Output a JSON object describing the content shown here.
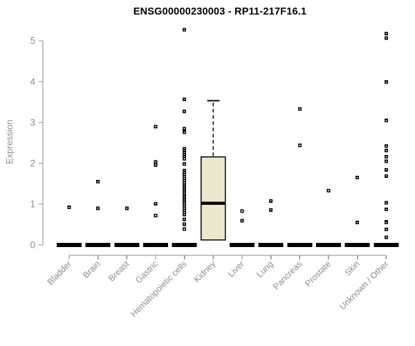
{
  "colors": {
    "box_fill": "#ece8ce",
    "box_stroke": "#000000",
    "point": "#000000",
    "point_center": "#ffffff",
    "axis": "#898989",
    "tick_label": "#8c8c8c",
    "title": "#000000",
    "zero_bar": "#000000"
  },
  "chart_data": {
    "type": "boxplot",
    "title": "ENSG00000230003 - RP11-217F16.1",
    "ylabel": "Expression",
    "xlabel": "",
    "ylim": [
      0,
      5
    ],
    "yticks": [
      0,
      1,
      2,
      3,
      4,
      5
    ],
    "grid": "off",
    "categories": [
      "Bladder",
      "Brain",
      "Breast",
      "Gastric",
      "Hematopoietic cells",
      "Kidney",
      "Liver",
      "Lung",
      "Pancreas",
      "Prostate",
      "Skin",
      "Unknown / Other"
    ],
    "boxes": [
      {
        "category": "Bladder",
        "q1": 0,
        "median": 0,
        "q3": 0,
        "whisker_low": 0,
        "whisker_high": 0,
        "outliers": [
          0.92
        ]
      },
      {
        "category": "Brain",
        "q1": 0,
        "median": 0,
        "q3": 0,
        "whisker_low": 0,
        "whisker_high": 0,
        "outliers": [
          1.55,
          0.9
        ]
      },
      {
        "category": "Breast",
        "q1": 0,
        "median": 0,
        "q3": 0,
        "whisker_low": 0,
        "whisker_high": 0,
        "outliers": [
          0.9
        ]
      },
      {
        "category": "Gastric",
        "q1": 0,
        "median": 0,
        "q3": 0,
        "whisker_low": 0,
        "whisker_high": 0,
        "outliers": [
          2.9,
          2.03,
          1.96,
          1.01,
          0.72
        ]
      },
      {
        "category": "Hematopoietic cells",
        "q1": 0,
        "median": 0,
        "q3": 0,
        "whisker_low": 0,
        "whisker_high": 0,
        "outliers": [
          5.27,
          3.57,
          3.27,
          2.85,
          2.76,
          2.36,
          2.31,
          2.26,
          2.21,
          2.16,
          2.11,
          1.98,
          1.82,
          1.77,
          1.72,
          1.67,
          1.62,
          1.57,
          1.52,
          1.47,
          1.42,
          1.37,
          1.32,
          1.27,
          1.2,
          1.15,
          1.1,
          1.05,
          1.0,
          0.95,
          0.9,
          0.85,
          0.8,
          0.75,
          0.63,
          0.51,
          0.39
        ]
      },
      {
        "category": "Kidney",
        "q1": 0.12,
        "median": 1.02,
        "q3": 2.16,
        "whisker_low": 0.12,
        "whisker_high": 3.53,
        "outliers": []
      },
      {
        "category": "Liver",
        "q1": 0,
        "median": 0,
        "q3": 0,
        "whisker_low": 0,
        "whisker_high": 0,
        "outliers": [
          0.83,
          0.59
        ]
      },
      {
        "category": "Lung",
        "q1": 0,
        "median": 0,
        "q3": 0,
        "whisker_low": 0,
        "whisker_high": 0,
        "outliers": [
          1.08,
          0.86
        ]
      },
      {
        "category": "Pancreas",
        "q1": 0,
        "median": 0,
        "q3": 0,
        "whisker_low": 0,
        "whisker_high": 0,
        "outliers": [
          3.33,
          2.44
        ]
      },
      {
        "category": "Prostate",
        "q1": 0,
        "median": 0,
        "q3": 0,
        "whisker_low": 0,
        "whisker_high": 0,
        "outliers": [
          1.33
        ]
      },
      {
        "category": "Skin",
        "q1": 0,
        "median": 0,
        "q3": 0,
        "whisker_low": 0,
        "whisker_high": 0,
        "outliers": [
          1.65,
          0.55
        ]
      },
      {
        "category": "Unknown / Other",
        "q1": 0,
        "median": 0,
        "q3": 0,
        "whisker_low": 0,
        "whisker_high": 0,
        "outliers": [
          5.18,
          5.07,
          3.99,
          3.05,
          2.42,
          2.31,
          2.16,
          2.05,
          1.84,
          1.69,
          1.03,
          0.87,
          0.57,
          0.55,
          0.38,
          0.19
        ]
      }
    ]
  }
}
